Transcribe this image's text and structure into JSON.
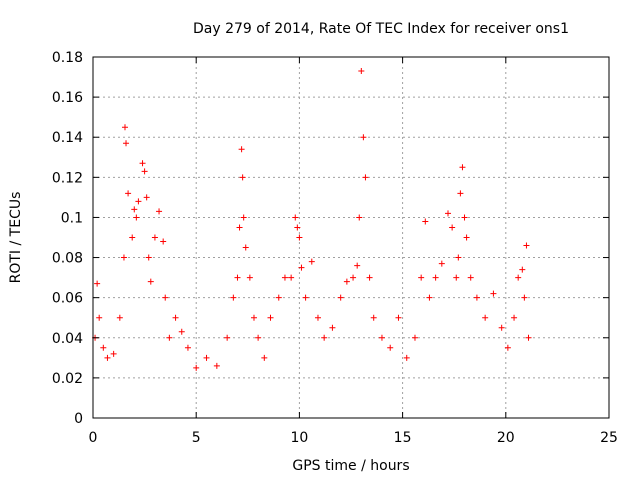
{
  "chart_data": {
    "type": "scatter",
    "title": "Day 279 of 2014, Rate Of TEC Index for receiver ons1",
    "xlabel": "GPS time / hours",
    "ylabel": "ROTI / TECUs",
    "xlim": [
      0,
      25
    ],
    "ylim": [
      0,
      0.18
    ],
    "xticks": [
      0,
      5,
      10,
      15,
      20,
      25
    ],
    "xtick_labels": [
      "0",
      "5",
      "10",
      "15",
      "20",
      "25"
    ],
    "yticks": [
      0,
      0.02,
      0.04,
      0.06,
      0.08,
      0.1,
      0.12,
      0.14,
      0.16,
      0.18
    ],
    "ytick_labels": [
      "0",
      "0.02",
      "0.04",
      "0.06",
      "0.08",
      "0.1",
      "0.12",
      "0.14",
      "0.16",
      "0.18"
    ],
    "grid": true,
    "marker": "+",
    "color": "#ff0000",
    "series": [
      {
        "name": "ROTI",
        "x": [
          0.1,
          0.2,
          0.3,
          0.5,
          0.7,
          1.0,
          1.3,
          1.5,
          1.55,
          1.6,
          1.7,
          1.9,
          2.0,
          2.1,
          2.2,
          2.4,
          2.5,
          2.6,
          2.7,
          2.8,
          3.0,
          3.2,
          3.4,
          3.5,
          3.7,
          4.0,
          4.3,
          4.6,
          5.0,
          5.5,
          6.0,
          6.5,
          6.8,
          7.0,
          7.1,
          7.2,
          7.25,
          7.3,
          7.4,
          7.6,
          7.8,
          8.0,
          8.3,
          8.6,
          9.0,
          9.3,
          9.6,
          9.8,
          9.9,
          10.0,
          10.1,
          10.3,
          10.6,
          10.9,
          11.2,
          11.6,
          12.0,
          12.3,
          12.6,
          12.8,
          12.9,
          13.0,
          13.1,
          13.2,
          13.4,
          13.6,
          14.0,
          14.4,
          14.8,
          15.2,
          15.6,
          15.9,
          16.1,
          16.3,
          16.6,
          16.9,
          17.2,
          17.4,
          17.6,
          17.7,
          17.8,
          17.9,
          18.0,
          18.1,
          18.3,
          18.6,
          19.0,
          19.4,
          19.8,
          20.1,
          20.4,
          20.6,
          20.8,
          20.9,
          21.0,
          21.1
        ],
        "y": [
          0.04,
          0.067,
          0.05,
          0.035,
          0.03,
          0.032,
          0.05,
          0.08,
          0.145,
          0.137,
          0.112,
          0.09,
          0.104,
          0.1,
          0.108,
          0.127,
          0.123,
          0.11,
          0.08,
          0.068,
          0.09,
          0.103,
          0.088,
          0.06,
          0.04,
          0.05,
          0.043,
          0.035,
          0.025,
          0.03,
          0.026,
          0.04,
          0.06,
          0.07,
          0.095,
          0.134,
          0.12,
          0.1,
          0.085,
          0.07,
          0.05,
          0.04,
          0.03,
          0.05,
          0.06,
          0.07,
          0.07,
          0.1,
          0.095,
          0.09,
          0.075,
          0.06,
          0.078,
          0.05,
          0.04,
          0.045,
          0.06,
          0.068,
          0.07,
          0.076,
          0.1,
          0.173,
          0.14,
          0.12,
          0.07,
          0.05,
          0.04,
          0.035,
          0.05,
          0.03,
          0.04,
          0.07,
          0.098,
          0.06,
          0.07,
          0.077,
          0.102,
          0.095,
          0.07,
          0.08,
          0.112,
          0.125,
          0.1,
          0.09,
          0.07,
          0.06,
          0.05,
          0.062,
          0.045,
          0.035,
          0.05,
          0.07,
          0.074,
          0.06,
          0.086,
          0.04
        ]
      }
    ]
  }
}
